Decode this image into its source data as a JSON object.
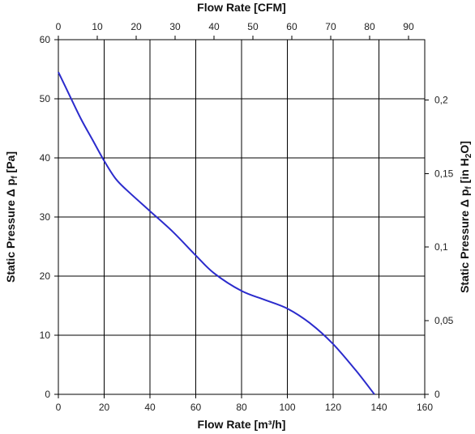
{
  "chart_data": {
    "type": "line",
    "title": "",
    "xlabel": "Flow Rate [m³/h]",
    "x2label": "Flow Rate [CFM]",
    "ylabel": {
      "main": "Static Pressure ",
      "delta": "Δ",
      "p": " p",
      "sub": "f",
      "unit": " [Pa]"
    },
    "y2label": {
      "main": "Static Pressure ",
      "delta": "Δ",
      "p": " p",
      "sub": "f",
      "unit": " [in H",
      "sub2": "2",
      "unit2": "O]"
    },
    "xlim": [
      0,
      160
    ],
    "ylim": [
      0,
      60
    ],
    "x2lim": [
      0,
      94.17
    ],
    "y2lim": [
      0,
      0.2409
    ],
    "xticks": [
      "0",
      "20",
      "40",
      "60",
      "80",
      "100",
      "120",
      "140",
      "160"
    ],
    "yticks": [
      "0",
      "10",
      "20",
      "30",
      "40",
      "50",
      "60"
    ],
    "x2ticks": [
      "0",
      "10",
      "20",
      "30",
      "40",
      "50",
      "60",
      "70",
      "80",
      "90"
    ],
    "y2ticks": [
      "0",
      "0,05",
      "0,1",
      "0,15",
      "0,2"
    ],
    "grid": true,
    "line_color": "#2b2bcc",
    "series": [
      {
        "x": [
          0,
          5,
          10,
          15,
          20,
          25,
          30,
          40,
          50,
          60,
          68,
          80,
          90,
          100,
          110,
          120,
          130,
          138
        ],
        "y": [
          54.5,
          50.5,
          46.5,
          43,
          39.5,
          36.5,
          34.5,
          31,
          27.5,
          23.5,
          20.5,
          17.5,
          16,
          14.5,
          12,
          8.5,
          4,
          0
        ]
      }
    ]
  }
}
